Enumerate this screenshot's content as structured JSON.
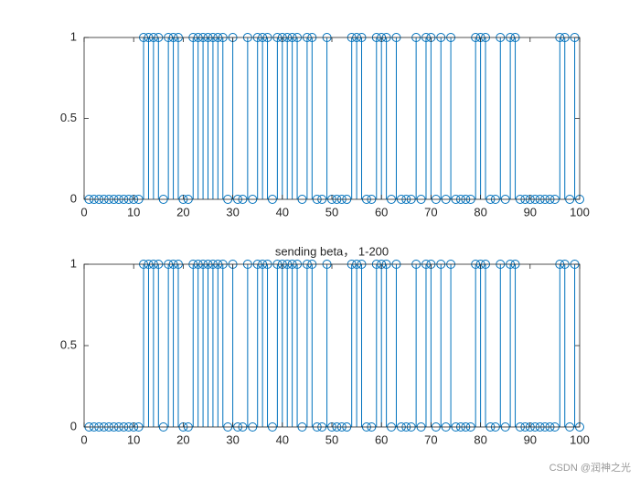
{
  "chart_data": [
    {
      "type": "stem",
      "color": "#0072bd",
      "x": [
        1,
        2,
        3,
        4,
        5,
        6,
        7,
        8,
        9,
        10,
        11,
        12,
        13,
        14,
        15,
        16,
        17,
        18,
        19,
        20,
        21,
        22,
        23,
        24,
        25,
        26,
        27,
        28,
        29,
        30,
        31,
        32,
        33,
        34,
        35,
        36,
        37,
        38,
        39,
        40,
        41,
        42,
        43,
        44,
        45,
        46,
        47,
        48,
        49,
        50,
        51,
        52,
        53,
        54,
        55,
        56,
        57,
        58,
        59,
        60,
        61,
        62,
        63,
        64,
        65,
        66,
        67,
        68,
        69,
        70,
        71,
        72,
        73,
        74,
        75,
        76,
        77,
        78,
        79,
        80,
        81,
        82,
        83,
        84,
        85,
        86,
        87,
        88,
        89,
        90,
        91,
        92,
        93,
        94,
        95,
        96,
        97,
        98,
        99,
        100
      ],
      "values": [
        0,
        0,
        0,
        0,
        0,
        0,
        0,
        0,
        0,
        0,
        0,
        1,
        1,
        1,
        1,
        0,
        1,
        1,
        1,
        0,
        0,
        1,
        1,
        1,
        1,
        1,
        1,
        1,
        0,
        1,
        0,
        0,
        1,
        0,
        1,
        1,
        1,
        0,
        1,
        1,
        1,
        1,
        1,
        0,
        1,
        1,
        0,
        0,
        1,
        0,
        0,
        0,
        0,
        1,
        1,
        1,
        0,
        0,
        1,
        1,
        1,
        0,
        1,
        0,
        0,
        0,
        1,
        0,
        1,
        1,
        0,
        1,
        0,
        1,
        0,
        0,
        0,
        0,
        1,
        1,
        1,
        0,
        0,
        1,
        0,
        1,
        1,
        0,
        0,
        0,
        0,
        0,
        0,
        0,
        0,
        1,
        1,
        0,
        1,
        0
      ],
      "xlim": [
        0,
        100
      ],
      "xticks": [
        0,
        10,
        20,
        30,
        40,
        50,
        60,
        70,
        80,
        90,
        100
      ],
      "ylim": [
        0,
        1
      ],
      "yticks": [
        0,
        0.5,
        1
      ]
    },
    {
      "type": "stem",
      "color": "#0072bd",
      "title": "sending beta，  1-200",
      "x": [
        1,
        2,
        3,
        4,
        5,
        6,
        7,
        8,
        9,
        10,
        11,
        12,
        13,
        14,
        15,
        16,
        17,
        18,
        19,
        20,
        21,
        22,
        23,
        24,
        25,
        26,
        27,
        28,
        29,
        30,
        31,
        32,
        33,
        34,
        35,
        36,
        37,
        38,
        39,
        40,
        41,
        42,
        43,
        44,
        45,
        46,
        47,
        48,
        49,
        50,
        51,
        52,
        53,
        54,
        55,
        56,
        57,
        58,
        59,
        60,
        61,
        62,
        63,
        64,
        65,
        66,
        67,
        68,
        69,
        70,
        71,
        72,
        73,
        74,
        75,
        76,
        77,
        78,
        79,
        80,
        81,
        82,
        83,
        84,
        85,
        86,
        87,
        88,
        89,
        90,
        91,
        92,
        93,
        94,
        95,
        96,
        97,
        98,
        99,
        100
      ],
      "values": [
        0,
        0,
        0,
        0,
        0,
        0,
        0,
        0,
        0,
        0,
        0,
        1,
        1,
        1,
        1,
        0,
        1,
        1,
        1,
        0,
        0,
        1,
        1,
        1,
        1,
        1,
        1,
        1,
        0,
        1,
        0,
        0,
        1,
        0,
        1,
        1,
        1,
        0,
        1,
        1,
        1,
        1,
        1,
        0,
        1,
        1,
        0,
        0,
        1,
        0,
        0,
        0,
        0,
        1,
        1,
        1,
        0,
        0,
        1,
        1,
        1,
        0,
        1,
        0,
        0,
        0,
        1,
        0,
        1,
        1,
        0,
        1,
        0,
        1,
        0,
        0,
        0,
        0,
        1,
        1,
        1,
        0,
        0,
        1,
        0,
        1,
        1,
        0,
        0,
        0,
        0,
        0,
        0,
        0,
        0,
        1,
        1,
        0,
        1,
        0
      ],
      "xlim": [
        0,
        100
      ],
      "xticks": [
        0,
        10,
        20,
        30,
        40,
        50,
        60,
        70,
        80,
        90,
        100
      ],
      "ylim": [
        0,
        1
      ],
      "yticks": [
        0,
        0.5,
        1
      ]
    }
  ],
  "watermark": "CSDN @润神之光"
}
